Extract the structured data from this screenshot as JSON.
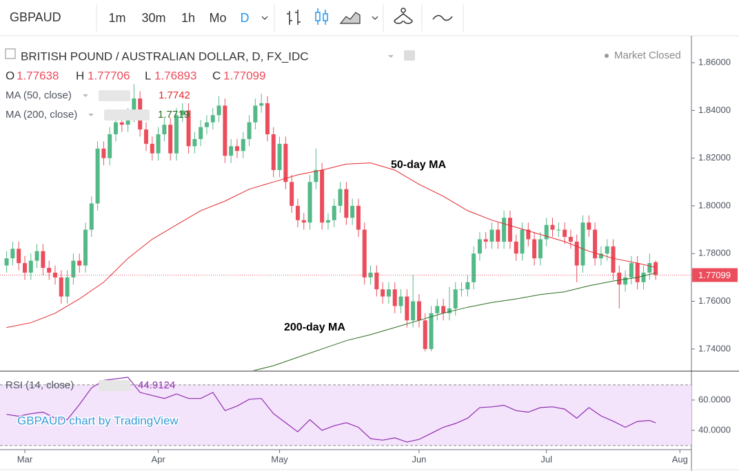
{
  "toolbar": {
    "symbol": "GBPAUD",
    "intervals": [
      "1m",
      "30m",
      "1h",
      "Mo",
      "D"
    ]
  },
  "chart_data": [
    {
      "type": "candlestick",
      "title": "BRITISH POUND / AUSTRALIAN DOLLAR, D, FX_IDC",
      "status": "Market Closed",
      "ohlc_labels": [
        "O",
        "H",
        "L",
        "C"
      ],
      "up_color": "#53b987",
      "down_color": "#eb4d5c",
      "open": [
        1.775,
        1.778,
        1.782,
        1.776,
        1.772,
        1.777,
        1.781,
        1.774,
        1.772,
        1.77,
        1.762,
        1.77,
        1.777,
        1.775,
        1.79,
        1.801,
        1.824,
        1.82,
        1.83,
        1.835,
        1.834,
        1.838,
        1.845,
        1.832,
        1.826,
        1.822,
        1.83,
        1.834,
        1.822,
        1.838,
        1.84,
        1.825,
        1.828,
        1.833,
        1.835,
        1.838,
        1.842,
        1.821,
        1.825,
        1.823,
        1.828,
        1.835,
        1.842,
        1.843,
        1.83,
        1.815,
        1.826,
        1.81,
        1.8,
        1.794,
        1.793,
        1.81,
        1.815,
        1.793,
        1.794,
        1.8,
        1.807,
        1.795,
        1.8,
        1.79,
        1.77,
        1.772,
        1.765,
        1.762,
        1.765,
        1.758,
        1.762,
        1.752,
        1.76,
        1.752,
        1.74,
        1.755,
        1.758,
        1.755,
        1.757,
        1.765,
        1.765,
        1.768,
        1.78,
        1.786,
        1.785,
        1.79,
        1.785,
        1.795,
        1.785,
        1.78,
        1.79,
        1.786,
        1.778,
        1.786,
        1.792,
        1.79,
        1.79,
        1.787,
        1.785,
        1.775,
        1.793,
        1.79,
        1.778,
        1.78,
        1.783,
        1.772,
        1.767,
        1.77,
        1.776,
        1.768,
        1.772,
        1.77638
      ],
      "high": [
        1.781,
        1.785,
        1.785,
        1.779,
        1.78,
        1.784,
        1.784,
        1.777,
        1.775,
        1.773,
        1.773,
        1.78,
        1.78,
        1.793,
        1.804,
        1.827,
        1.827,
        1.833,
        1.838,
        1.838,
        1.841,
        1.851,
        1.848,
        1.835,
        1.829,
        1.833,
        1.837,
        1.837,
        1.841,
        1.843,
        1.843,
        1.831,
        1.836,
        1.838,
        1.841,
        1.846,
        1.845,
        1.828,
        1.828,
        1.831,
        1.838,
        1.845,
        1.847,
        1.846,
        1.833,
        1.829,
        1.829,
        1.813,
        1.803,
        1.797,
        1.813,
        1.824,
        1.818,
        1.797,
        1.803,
        1.81,
        1.81,
        1.803,
        1.803,
        1.793,
        1.775,
        1.775,
        1.768,
        1.768,
        1.768,
        1.765,
        1.765,
        1.771,
        1.763,
        1.755,
        1.758,
        1.761,
        1.761,
        1.766,
        1.768,
        1.768,
        1.771,
        1.783,
        1.789,
        1.789,
        1.793,
        1.793,
        1.798,
        1.798,
        1.788,
        1.793,
        1.793,
        1.789,
        1.789,
        1.795,
        1.795,
        1.793,
        1.793,
        1.79,
        1.788,
        1.796,
        1.796,
        1.793,
        1.783,
        1.786,
        1.786,
        1.775,
        1.773,
        1.779,
        1.779,
        1.775,
        1.78,
        1.77706
      ],
      "low": [
        1.772,
        1.775,
        1.773,
        1.769,
        1.769,
        1.774,
        1.771,
        1.769,
        1.767,
        1.759,
        1.759,
        1.767,
        1.772,
        1.772,
        1.787,
        1.798,
        1.817,
        1.817,
        1.827,
        1.831,
        1.831,
        1.835,
        1.829,
        1.823,
        1.819,
        1.819,
        1.827,
        1.819,
        1.819,
        1.835,
        1.822,
        1.822,
        1.825,
        1.83,
        1.832,
        1.835,
        1.818,
        1.818,
        1.82,
        1.82,
        1.825,
        1.832,
        1.839,
        1.827,
        1.812,
        1.812,
        1.807,
        1.797,
        1.791,
        1.79,
        1.79,
        1.807,
        1.79,
        1.79,
        1.791,
        1.797,
        1.792,
        1.792,
        1.787,
        1.767,
        1.767,
        1.762,
        1.759,
        1.759,
        1.755,
        1.755,
        1.749,
        1.749,
        1.749,
        1.739,
        1.739,
        1.752,
        1.752,
        1.752,
        1.754,
        1.762,
        1.762,
        1.765,
        1.777,
        1.782,
        1.782,
        1.782,
        1.782,
        1.782,
        1.777,
        1.777,
        1.783,
        1.775,
        1.775,
        1.783,
        1.787,
        1.787,
        1.784,
        1.782,
        1.768,
        1.772,
        1.787,
        1.775,
        1.775,
        1.777,
        1.769,
        1.757,
        1.764,
        1.767,
        1.765,
        1.765,
        1.769,
        1.76893
      ],
      "close": [
        1.778,
        1.782,
        1.776,
        1.772,
        1.777,
        1.781,
        1.774,
        1.772,
        1.77,
        1.762,
        1.77,
        1.777,
        1.775,
        1.79,
        1.801,
        1.824,
        1.82,
        1.83,
        1.835,
        1.834,
        1.838,
        1.845,
        1.832,
        1.826,
        1.822,
        1.83,
        1.834,
        1.822,
        1.838,
        1.84,
        1.825,
        1.828,
        1.833,
        1.835,
        1.838,
        1.842,
        1.821,
        1.825,
        1.823,
        1.828,
        1.835,
        1.842,
        1.843,
        1.83,
        1.815,
        1.826,
        1.81,
        1.8,
        1.794,
        1.793,
        1.81,
        1.815,
        1.793,
        1.794,
        1.8,
        1.807,
        1.795,
        1.8,
        1.79,
        1.77,
        1.772,
        1.765,
        1.762,
        1.765,
        1.758,
        1.762,
        1.752,
        1.76,
        1.752,
        1.74,
        1.755,
        1.758,
        1.755,
        1.757,
        1.765,
        1.765,
        1.768,
        1.78,
        1.786,
        1.785,
        1.79,
        1.785,
        1.795,
        1.785,
        1.78,
        1.79,
        1.786,
        1.778,
        1.786,
        1.792,
        1.79,
        1.79,
        1.787,
        1.785,
        1.775,
        1.793,
        1.79,
        1.778,
        1.78,
        1.783,
        1.772,
        1.767,
        1.77,
        1.776,
        1.768,
        1.772,
        1.776,
        1.77099
      ],
      "ylim": [
        1.731,
        1.8704
      ],
      "yticks": [
        {
          "value": 1.74,
          "label": "1.74000"
        },
        {
          "value": 1.76,
          "label": "1.76000"
        },
        {
          "value": 1.78,
          "label": "1.78000"
        },
        {
          "value": 1.8,
          "label": "1.80000"
        },
        {
          "value": 1.82,
          "label": "1.82000"
        },
        {
          "value": 1.84,
          "label": "1.84000"
        },
        {
          "value": 1.86,
          "label": "1.86000"
        }
      ],
      "xlim": [
        -1.09,
        112.9
      ],
      "xticks": [
        {
          "value": 3,
          "label": "Mar"
        },
        {
          "value": 25,
          "label": "Apr"
        },
        {
          "value": 45,
          "label": "May"
        },
        {
          "value": 68,
          "label": "Jun"
        },
        {
          "value": 89,
          "label": "Jul"
        },
        {
          "value": 111,
          "label": "Aug"
        }
      ],
      "series": [
        {
          "name": "MA (50, close)",
          "color": "#e3262c",
          "x": [
            0,
            4,
            8,
            12,
            16,
            20,
            24,
            28,
            32,
            36,
            40,
            44,
            48,
            52,
            56,
            60,
            64,
            68,
            72,
            76,
            80,
            84,
            88,
            92,
            96,
            100,
            104,
            107
          ],
          "values": [
            1.749,
            1.751,
            1.755,
            1.761,
            1.768,
            1.778,
            1.786,
            1.792,
            1.798,
            1.802,
            1.807,
            1.81,
            1.813,
            1.815,
            1.8175,
            1.818,
            1.815,
            1.809,
            1.804,
            1.798,
            1.794,
            1.791,
            1.788,
            1.785,
            1.781,
            1.778,
            1.776,
            1.7742
          ]
        },
        {
          "name": "MA (200, close)",
          "color": "#2b6b1e",
          "x": [
            40,
            44,
            48,
            52,
            56,
            60,
            64,
            68,
            72,
            76,
            80,
            84,
            88,
            92,
            96,
            100,
            104,
            107
          ],
          "values": [
            1.7305,
            1.733,
            1.7365,
            1.74,
            1.7435,
            1.746,
            1.749,
            1.752,
            1.755,
            1.7575,
            1.7595,
            1.761,
            1.7628,
            1.764,
            1.7665,
            1.7685,
            1.77,
            1.7719
          ]
        }
      ],
      "annotations": [
        "50-day MA",
        "200-day MA"
      ],
      "watermark": "GBPAUD chart by TradingView"
    },
    {
      "type": "line",
      "name": "RSI (14, close)",
      "color": "#8e2bb0",
      "x": [
        0,
        2,
        4,
        6,
        8,
        10,
        12,
        14,
        16,
        18,
        20,
        22,
        24,
        26,
        28,
        30,
        32,
        34,
        36,
        38,
        40,
        42,
        44,
        46,
        48,
        50,
        52,
        54,
        56,
        58,
        60,
        62,
        64,
        66,
        68,
        70,
        72,
        74,
        76,
        78,
        80,
        82,
        84,
        86,
        88,
        90,
        92,
        94,
        96,
        98,
        100,
        102,
        104,
        106,
        107
      ],
      "values": [
        50.5,
        49.3,
        51,
        52,
        48,
        47,
        57,
        68,
        73,
        74,
        75,
        65,
        63,
        61,
        64,
        61,
        61,
        65,
        53,
        56,
        60.5,
        61,
        51,
        45,
        39,
        47,
        40,
        43,
        45,
        42,
        34.5,
        33.5,
        35,
        32.3,
        34,
        38,
        42,
        44.5,
        48,
        55,
        55.5,
        56.5,
        53,
        52,
        55,
        55.5,
        54,
        48,
        55,
        49.5,
        46,
        42,
        45.9,
        46.5,
        44.9124
      ],
      "bands": [
        30,
        70
      ],
      "xlim": [
        -1.09,
        112.9
      ],
      "ylim": [
        27.7,
        78.6
      ],
      "yticks": [
        {
          "value": 60,
          "label": "60.0000"
        },
        {
          "value": 40,
          "label": "40.0000"
        }
      ]
    }
  ]
}
